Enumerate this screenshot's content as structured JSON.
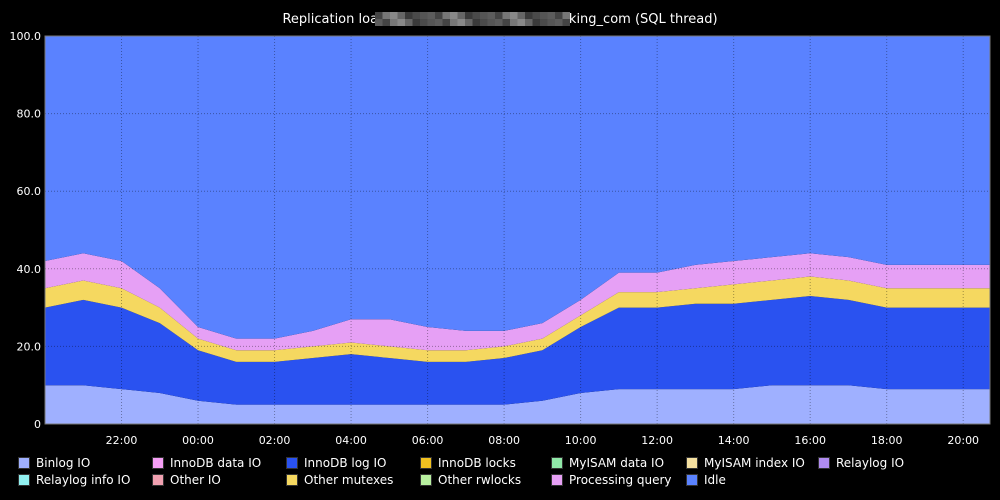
{
  "chart_data": {
    "type": "area",
    "title_prefix": "Replication load on ",
    "title_suffix": "booking_com (SQL thread)",
    "ylim": [
      0,
      100
    ],
    "y_ticks": [
      "0",
      "20.0",
      "40.0",
      "60.0",
      "80.0",
      "100.0"
    ],
    "x_ticks": [
      "22:00",
      "00:00",
      "02:00",
      "04:00",
      "06:00",
      "08:00",
      "10:00",
      "12:00",
      "14:00",
      "16:00",
      "18:00",
      "20:00"
    ],
    "x_tick_hours": [
      22,
      24,
      26,
      28,
      30,
      32,
      34,
      36,
      38,
      40,
      42,
      44
    ],
    "x_range_hours": [
      20.0,
      44.7
    ],
    "grid": true,
    "legend_position": "bottom",
    "colors": {
      "Binlog IO": "#9fb0ff",
      "InnoDB data IO": "#f59ef5",
      "InnoDB log IO": "#2a52f0",
      "InnoDB locks": "#f0c020",
      "MyISAM data IO": "#90e8a8",
      "MyISAM index IO": "#f5e0a0",
      "Relaylog IO": "#b08cf0",
      "Relaylog info IO": "#90f0f0",
      "Other IO": "#f0a0b0",
      "Other mutexes": "#f5d860",
      "Other rwlocks": "#b8f0a0",
      "Processing query": "#e6a0f5",
      "Idle": "#5a82ff"
    },
    "legend": [
      "Binlog IO",
      "InnoDB data IO",
      "InnoDB log IO",
      "InnoDB locks",
      "MyISAM data IO",
      "MyISAM index IO",
      "Relaylog IO",
      "Relaylog info IO",
      "Other IO",
      "Other mutexes",
      "Other rwlocks",
      "Processing query",
      "Idle"
    ],
    "hours": [
      20.0,
      21.0,
      22.0,
      23.0,
      24.0,
      25.0,
      26.0,
      27.0,
      28.0,
      29.0,
      30.0,
      31.0,
      32.0,
      33.0,
      34.0,
      35.0,
      36.0,
      37.0,
      38.0,
      39.0,
      40.0,
      41.0,
      42.0,
      43.0,
      44.0,
      44.7
    ],
    "series": [
      {
        "name": "Binlog IO",
        "values": [
          10,
          10,
          9,
          8,
          6,
          5,
          5,
          5,
          5,
          5,
          5,
          5,
          5,
          6,
          8,
          9,
          9,
          9,
          9,
          10,
          10,
          10,
          9,
          9,
          9,
          9
        ]
      },
      {
        "name": "InnoDB log IO",
        "values": [
          20,
          22,
          21,
          18,
          13,
          11,
          11,
          12,
          13,
          12,
          11,
          11,
          12,
          13,
          17,
          21,
          21,
          22,
          22,
          22,
          23,
          22,
          21,
          21,
          21,
          21
        ]
      },
      {
        "name": "Other mutexes",
        "values": [
          5,
          5,
          5,
          4,
          3,
          3,
          3,
          3,
          3,
          3,
          3,
          3,
          3,
          3,
          3,
          4,
          4,
          4,
          5,
          5,
          5,
          5,
          5,
          5,
          5,
          5
        ]
      },
      {
        "name": "Processing query",
        "values": [
          7,
          7,
          7,
          5,
          3,
          3,
          3,
          4,
          6,
          7,
          6,
          5,
          4,
          4,
          4,
          5,
          5,
          6,
          6,
          6,
          6,
          6,
          6,
          6,
          6,
          6
        ]
      },
      {
        "name": "Idle",
        "values": [
          58,
          56,
          58,
          65,
          75,
          78,
          78,
          76,
          73,
          73,
          75,
          76,
          76,
          74,
          68,
          61,
          61,
          59,
          58,
          57,
          56,
          57,
          59,
          59,
          59,
          59
        ]
      }
    ]
  }
}
